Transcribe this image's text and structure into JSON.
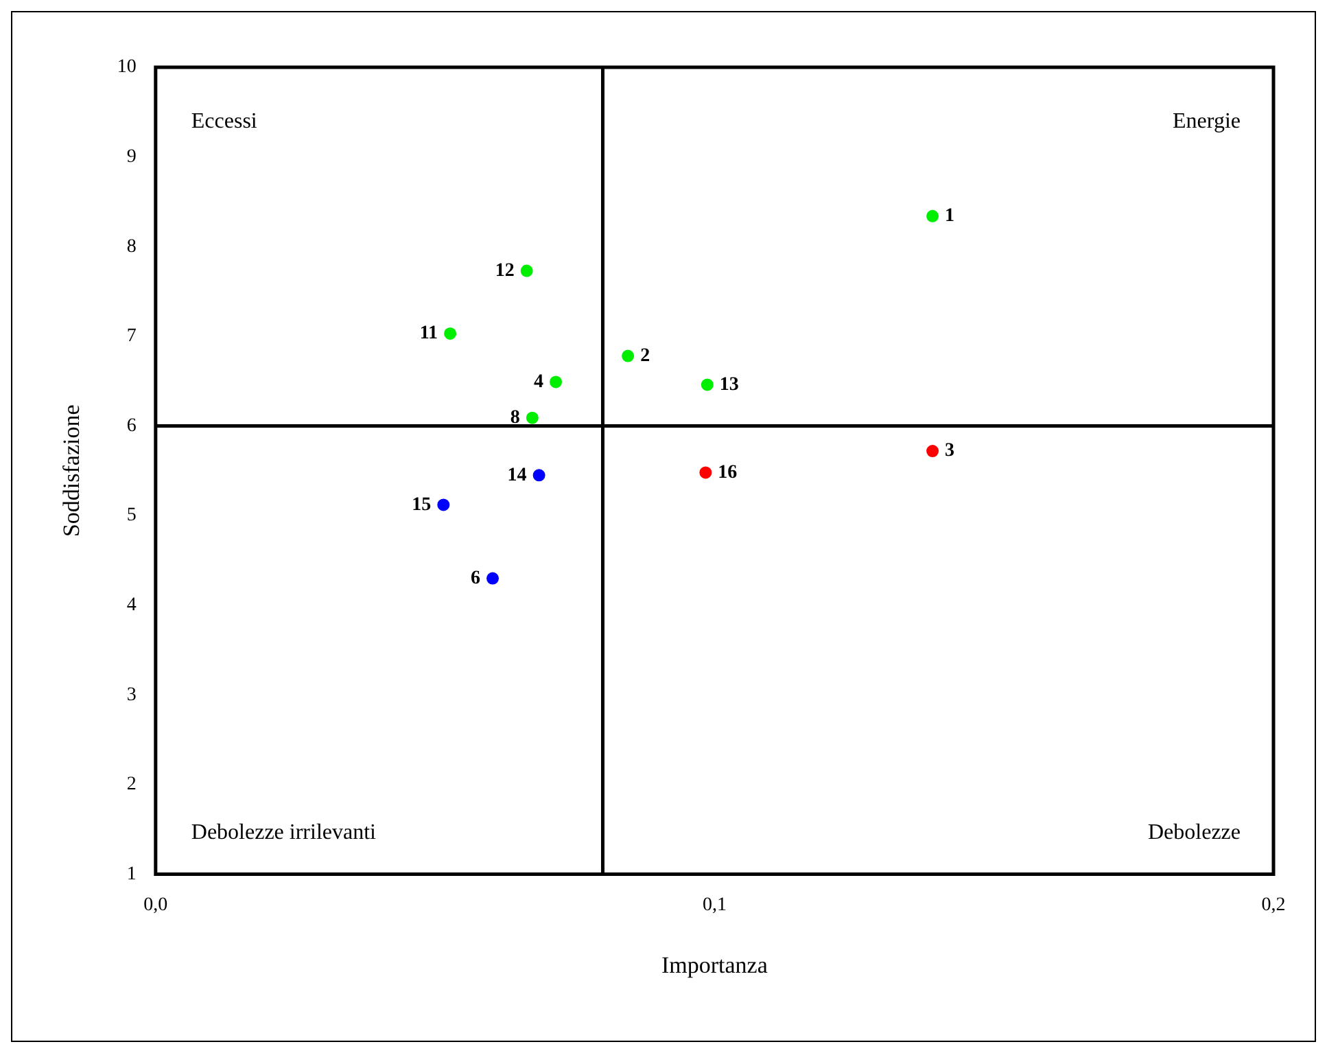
{
  "chart_data": {
    "type": "scatter",
    "xlabel": "Importanza",
    "ylabel": "Soddisfazione",
    "annotations": [
      "Eccessi",
      "Energie",
      "Debolezze irrilevanti",
      "Debolezze",
      {
        "text": "1",
        "x": 0.139,
        "y": 8.34
      },
      {
        "text": "12",
        "x": 0.0664,
        "y": 7.73
      },
      {
        "text": "11",
        "x": 0.0527,
        "y": 7.03
      },
      {
        "text": "2",
        "x": 0.0845,
        "y": 6.78
      },
      {
        "text": "4",
        "x": 0.0716,
        "y": 6.49
      },
      {
        "text": "13",
        "x": 0.0987,
        "y": 6.46
      },
      {
        "text": "8",
        "x": 0.0674,
        "y": 6.09
      },
      {
        "text": "3",
        "x": 0.139,
        "y": 5.72
      },
      {
        "text": "16",
        "x": 0.0984,
        "y": 5.48
      },
      {
        "text": "14",
        "x": 0.0686,
        "y": 5.45
      },
      {
        "text": "15",
        "x": 0.0515,
        "y": 5.12
      },
      {
        "text": "6",
        "x": 0.0603,
        "y": 4.3
      }
    ],
    "xlim": [
      0,
      0.2
    ],
    "xticks": [
      {
        "value": 0,
        "label": "0,0"
      },
      {
        "value": 0.1,
        "label": "0,1"
      },
      {
        "value": 0.2,
        "label": "0,2"
      }
    ],
    "ylim": [
      1,
      10
    ],
    "yticks": [
      1,
      2,
      3,
      4,
      5,
      6,
      7,
      8,
      9,
      10
    ],
    "ref_lines": [
      {
        "axis": "x",
        "value": 0.08,
        "color": "#000000"
      },
      {
        "axis": "y",
        "value": 6,
        "color": "#000000"
      }
    ],
    "grid": false,
    "legend": false,
    "marker": "circle",
    "series": [
      {
        "color": "#00ee00",
        "x": [
          0.139,
          0.0664,
          0.0527,
          0.0845,
          0.0716,
          0.0987,
          0.0674
        ],
        "values": [
          8.34,
          7.73,
          7.03,
          6.78,
          6.49,
          6.46,
          6.09
        ]
      },
      {
        "color": "#ff0000",
        "x": [
          0.139,
          0.0984
        ],
        "values": [
          5.72,
          5.48
        ]
      },
      {
        "color": "#0000ff",
        "x": [
          0.0686,
          0.0515,
          0.0603
        ],
        "values": [
          5.45,
          5.12,
          4.3
        ]
      }
    ]
  }
}
